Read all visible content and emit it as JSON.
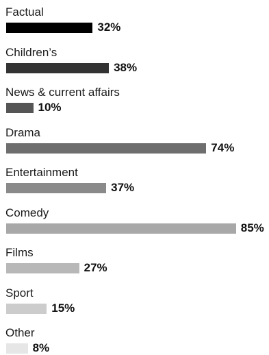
{
  "chart_data": {
    "type": "bar",
    "orientation": "horizontal",
    "categories": [
      "Factual",
      "Children’s",
      "News & current affairs",
      "Drama",
      "Entertainment",
      "Comedy",
      "Films",
      "Sport",
      "Other"
    ],
    "values": [
      32,
      38,
      10,
      74,
      37,
      85,
      27,
      15,
      8
    ],
    "value_labels": [
      "32%",
      "38%",
      "10%",
      "74%",
      "37%",
      "85%",
      "27%",
      "15%",
      "8%"
    ],
    "colors": [
      "#000000",
      "#333333",
      "#555555",
      "#6e6e6e",
      "#8a8a8a",
      "#a8a8a8",
      "#b8b8b8",
      "#cccccc",
      "#e6e6e6"
    ],
    "unit": "%",
    "title": "",
    "xlabel": "",
    "ylabel": "",
    "grid": false,
    "legend": "none"
  }
}
